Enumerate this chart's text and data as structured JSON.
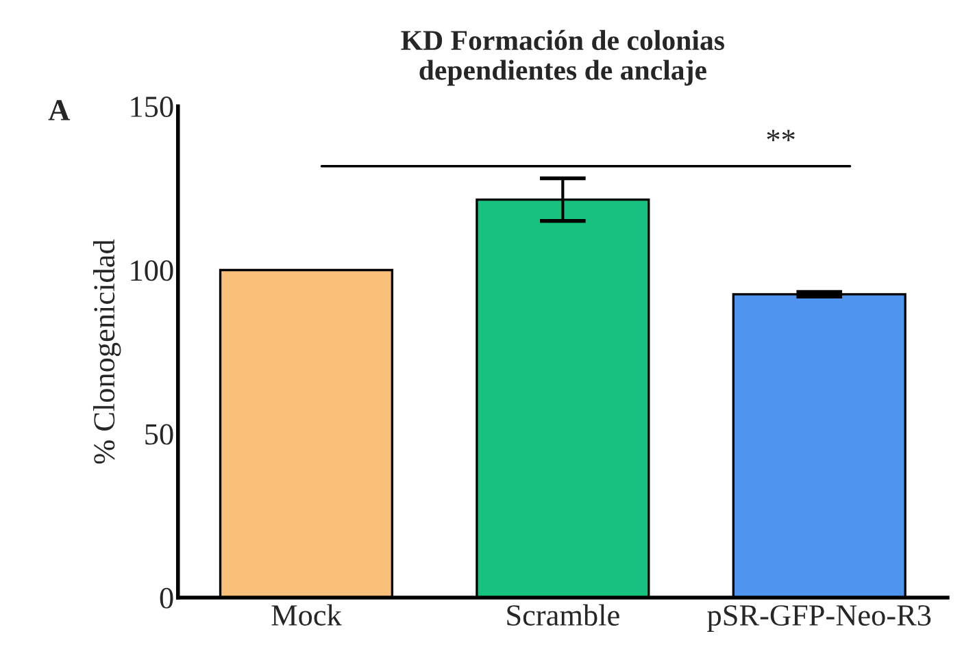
{
  "chart_data": {
    "type": "bar",
    "title": "KD Formación de colonias\ndependientes de anclaje",
    "ylabel": "% Clonogenicidad",
    "categories": [
      "Mock",
      "Scramble",
      "pSR-GFP-Neo-R3"
    ],
    "values": [
      100,
      121.5,
      92.6
    ],
    "errors": [
      null,
      6.5,
      0.7
    ],
    "colors": [
      "#f9c079",
      "#17c27f",
      "#4f94ee"
    ],
    "ylim": [
      0,
      150
    ],
    "yticks": [
      0,
      50,
      100,
      150
    ],
    "annotations": [
      "A"
    ],
    "ref_lines": [
      {
        "axis": "y",
        "value": 131.7,
        "label": "**",
        "color": "#000000"
      }
    ]
  }
}
